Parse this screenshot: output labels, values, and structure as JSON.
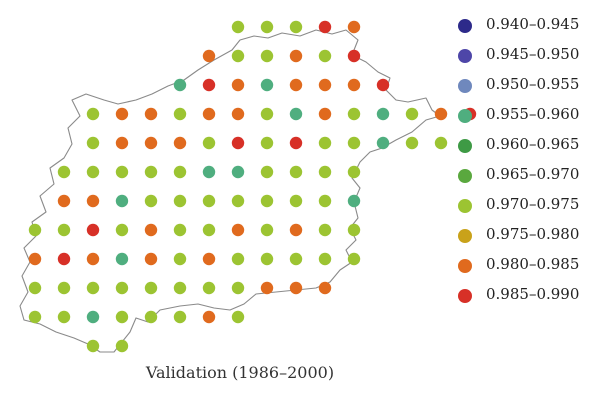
{
  "map_title": "Validation (1986–2000)",
  "legend": [
    {
      "label": "0.940–0.945",
      "color": "#2d2a8a"
    },
    {
      "label": "0.945–0.950",
      "color": "#4e46a8"
    },
    {
      "label": "0.950–0.955",
      "color": "#6f88bd"
    },
    {
      "label": "0.955–0.960",
      "color": "#4fae7f"
    },
    {
      "label": "0.960–0.965",
      "color": "#3e9a45"
    },
    {
      "label": "0.965–0.970",
      "color": "#5aa83e"
    },
    {
      "label": "0.970–0.975",
      "color": "#9cc432"
    },
    {
      "label": "0.975–0.980",
      "color": "#c9a21a"
    },
    {
      "label": "0.980–0.985",
      "color": "#e06a1e"
    },
    {
      "label": "0.985–0.990",
      "color": "#d73027"
    }
  ],
  "stations": [
    {
      "row": 0,
      "cols": [
        7,
        8,
        9,
        10,
        11
      ],
      "classes": [
        6,
        6,
        6,
        9,
        8
      ]
    },
    {
      "row": 1,
      "cols": [
        6,
        7,
        8,
        9,
        10,
        11
      ],
      "classes": [
        8,
        6,
        6,
        8,
        6,
        9
      ]
    },
    {
      "row": 2,
      "cols": [
        5,
        6,
        7,
        8,
        9,
        10,
        11,
        12
      ],
      "classes": [
        3,
        9,
        8,
        3,
        8,
        8,
        8,
        9
      ]
    },
    {
      "row": 3,
      "cols": [
        2,
        3,
        4,
        5,
        6,
        7,
        8,
        9,
        10,
        11,
        12,
        13,
        14,
        15
      ],
      "classes": [
        6,
        8,
        8,
        6,
        8,
        8,
        6,
        3,
        8,
        6,
        3,
        6,
        8,
        9
      ]
    },
    {
      "row": 4,
      "cols": [
        2,
        3,
        4,
        5,
        6,
        7,
        8,
        9,
        10,
        11,
        12,
        13,
        14
      ],
      "classes": [
        6,
        8,
        8,
        8,
        6,
        9,
        6,
        9,
        6,
        6,
        3,
        6,
        6
      ]
    },
    {
      "row": 5,
      "cols": [
        1,
        2,
        3,
        4,
        5,
        6,
        7,
        8,
        9,
        10,
        11
      ],
      "classes": [
        6,
        6,
        6,
        6,
        6,
        3,
        3,
        6,
        6,
        6,
        6
      ]
    },
    {
      "row": 6,
      "cols": [
        1,
        2,
        3,
        4,
        5,
        6,
        7,
        8,
        9,
        10,
        11
      ],
      "classes": [
        8,
        8,
        3,
        6,
        6,
        6,
        6,
        6,
        6,
        6,
        3
      ]
    },
    {
      "row": 7,
      "cols": [
        0,
        1,
        2,
        3,
        4,
        5,
        6,
        7,
        8,
        9,
        10,
        11
      ],
      "classes": [
        6,
        6,
        9,
        6,
        8,
        6,
        6,
        8,
        6,
        8,
        6,
        6
      ]
    },
    {
      "row": 8,
      "cols": [
        0,
        1,
        2,
        3,
        4,
        5,
        6,
        7,
        8,
        9,
        10,
        11
      ],
      "classes": [
        8,
        9,
        8,
        3,
        8,
        6,
        8,
        6,
        6,
        6,
        6,
        6
      ]
    },
    {
      "row": 9,
      "cols": [
        0,
        1,
        2,
        3,
        4,
        5,
        6,
        7,
        8,
        9,
        10
      ],
      "classes": [
        6,
        6,
        6,
        6,
        6,
        6,
        6,
        6,
        8,
        8,
        8
      ]
    },
    {
      "row": 10,
      "cols": [
        0,
        1,
        2,
        3,
        4,
        5,
        6,
        7
      ],
      "classes": [
        6,
        6,
        3,
        6,
        6,
        6,
        8,
        6
      ]
    },
    {
      "row": 11,
      "cols": [
        2,
        3
      ],
      "classes": [
        6,
        6
      ]
    }
  ]
}
